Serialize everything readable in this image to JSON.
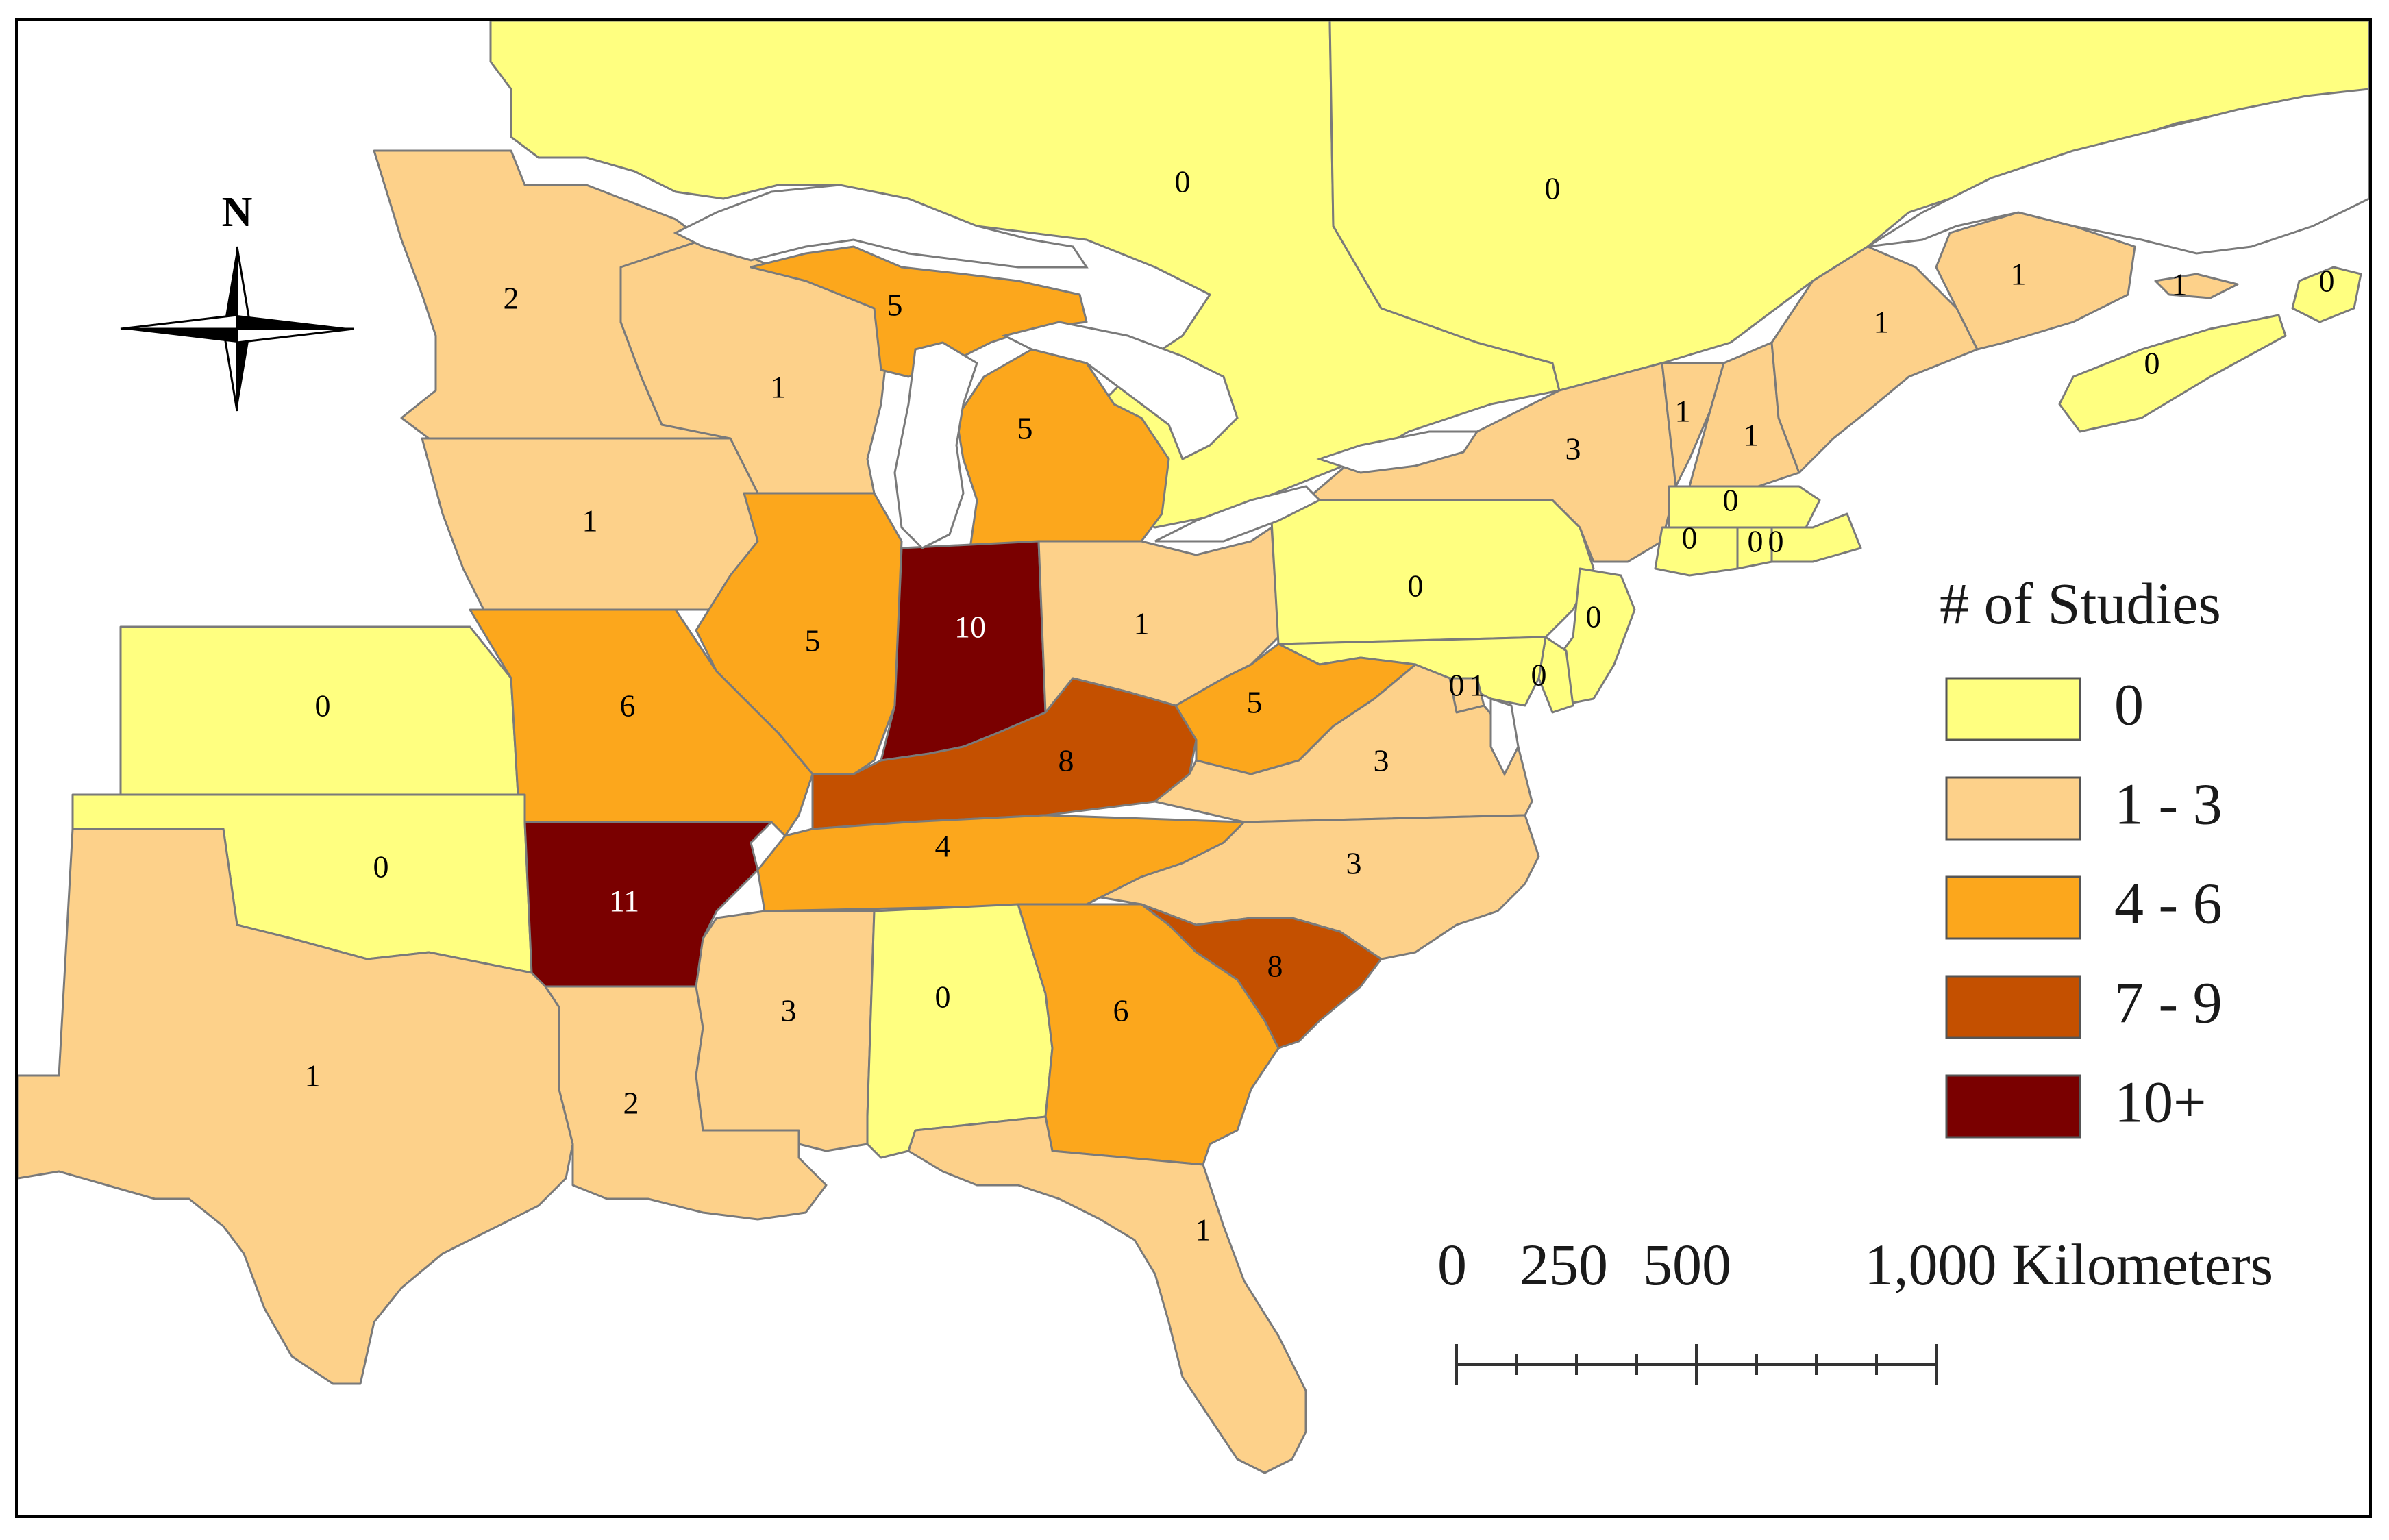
{
  "map": {
    "colors": {
      "c0": "#ffff80",
      "c1": "#fdd18a",
      "c4": "#fca71c",
      "c7": "#c45000",
      "c10": "#7a0000",
      "water": "#ffffff",
      "border": "#7a7a7a"
    },
    "regions": [
      {
        "name": "quebec-ontario-west",
        "value": "0",
        "cls": "c0"
      },
      {
        "name": "quebec-east",
        "value": "0",
        "cls": "c0"
      },
      {
        "name": "minnesota",
        "value": "2",
        "cls": "c1"
      },
      {
        "name": "wisconsin",
        "value": "1",
        "cls": "c1"
      },
      {
        "name": "michigan-upper",
        "value": "5",
        "cls": "c4"
      },
      {
        "name": "michigan-lower",
        "value": "5",
        "cls": "c4"
      },
      {
        "name": "iowa",
        "value": "1",
        "cls": "c1"
      },
      {
        "name": "illinois",
        "value": "5",
        "cls": "c4"
      },
      {
        "name": "indiana",
        "value": "10",
        "cls": "c10"
      },
      {
        "name": "ohio",
        "value": "1",
        "cls": "c1"
      },
      {
        "name": "pennsylvania",
        "value": "0",
        "cls": "c0"
      },
      {
        "name": "new-york",
        "value": "3",
        "cls": "c1"
      },
      {
        "name": "vermont",
        "value": "1",
        "cls": "c1"
      },
      {
        "name": "new-hampshire",
        "value": "1",
        "cls": "c1"
      },
      {
        "name": "maine",
        "value": "1",
        "cls": "c1"
      },
      {
        "name": "new-brunswick",
        "value": "1",
        "cls": "c1"
      },
      {
        "name": "prince-edward-island",
        "value": "1",
        "cls": "c1"
      },
      {
        "name": "cape-breton",
        "value": "0",
        "cls": "c0"
      },
      {
        "name": "nova-scotia",
        "value": "0",
        "cls": "c0"
      },
      {
        "name": "massachusetts",
        "value": "0",
        "cls": "c0"
      },
      {
        "name": "connecticut",
        "value": "0",
        "cls": "c0"
      },
      {
        "name": "rhode-island",
        "value": "0",
        "cls": "c0"
      },
      {
        "name": "cape-cod",
        "value": "0",
        "cls": "c0"
      },
      {
        "name": "new-jersey",
        "value": "0",
        "cls": "c0"
      },
      {
        "name": "delaware",
        "value": "0",
        "cls": "c0"
      },
      {
        "name": "maryland",
        "value": "0",
        "cls": "c0"
      },
      {
        "name": "dc",
        "value": "1",
        "cls": "c1"
      },
      {
        "name": "kansas",
        "value": "0",
        "cls": "c0"
      },
      {
        "name": "missouri",
        "value": "6",
        "cls": "c4"
      },
      {
        "name": "kentucky",
        "value": "8",
        "cls": "c7"
      },
      {
        "name": "west-virginia",
        "value": "5",
        "cls": "c4"
      },
      {
        "name": "virginia",
        "value": "3",
        "cls": "c1"
      },
      {
        "name": "oklahoma",
        "value": "0",
        "cls": "c0"
      },
      {
        "name": "arkansas",
        "value": "11",
        "cls": "c10"
      },
      {
        "name": "tennessee",
        "value": "4",
        "cls": "c4"
      },
      {
        "name": "north-carolina",
        "value": "3",
        "cls": "c1"
      },
      {
        "name": "texas",
        "value": "1",
        "cls": "c1"
      },
      {
        "name": "louisiana",
        "value": "2",
        "cls": "c1"
      },
      {
        "name": "mississippi",
        "value": "3",
        "cls": "c1"
      },
      {
        "name": "alabama",
        "value": "0",
        "cls": "c0"
      },
      {
        "name": "georgia",
        "value": "6",
        "cls": "c4"
      },
      {
        "name": "south-carolina",
        "value": "8",
        "cls": "c7"
      },
      {
        "name": "florida",
        "value": "1",
        "cls": "c1"
      }
    ]
  },
  "legend": {
    "title": "# of Studies",
    "items": [
      {
        "label": "0",
        "cls": "c0"
      },
      {
        "label": "1 - 3",
        "cls": "c1"
      },
      {
        "label": "4 - 6",
        "cls": "c4"
      },
      {
        "label": "7 - 9",
        "cls": "c7"
      },
      {
        "label": "10+",
        "cls": "c10"
      }
    ]
  },
  "scale_bar": {
    "tick_labels": [
      "0",
      "250",
      "500",
      "1,000 Kilometers"
    ]
  },
  "north_arrow": {
    "label": "N",
    "icon": "compass-rose-icon"
  }
}
